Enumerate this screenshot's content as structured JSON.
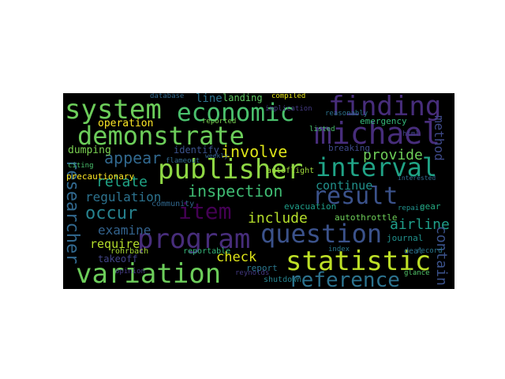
{
  "wordcloud": {
    "words": [
      {
        "text": "system",
        "color": "#6ccd5a"
      },
      {
        "text": "economic",
        "color": "#4ac16d"
      },
      {
        "text": "finding",
        "color": "#472d7b"
      },
      {
        "text": "demonstrate",
        "color": "#6ccd5a"
      },
      {
        "text": "michael",
        "color": "#472d7b"
      },
      {
        "text": "publisher",
        "color": "#8fd744"
      },
      {
        "text": "interval",
        "color": "#20a386"
      },
      {
        "text": "result",
        "color": "#3b528b"
      },
      {
        "text": "involve",
        "color": "#dde318"
      },
      {
        "text": "appear",
        "color": "#31688e"
      },
      {
        "text": "item",
        "color": "#440154"
      },
      {
        "text": "program",
        "color": "#472d7b"
      },
      {
        "text": "question",
        "color": "#3b528b"
      },
      {
        "text": "statistic",
        "color": "#bddf26"
      },
      {
        "text": "variation",
        "color": "#6ccd5a"
      },
      {
        "text": "reference",
        "color": "#2c728e"
      },
      {
        "text": "researcher",
        "color": "#31688e"
      },
      {
        "text": "inspection",
        "color": "#3fbc73"
      },
      {
        "text": "include",
        "color": "#b5de2b"
      },
      {
        "text": "occur",
        "color": "#26828e"
      },
      {
        "text": "relate",
        "color": "#20a486"
      },
      {
        "text": "regulation",
        "color": "#2c728e"
      },
      {
        "text": "provide",
        "color": "#6ece58"
      },
      {
        "text": "continue",
        "color": "#21918c"
      },
      {
        "text": "airline",
        "color": "#1f9e89"
      },
      {
        "text": "method",
        "color": "#3e4989"
      },
      {
        "text": "contain",
        "color": "#3b528b"
      },
      {
        "text": "examine",
        "color": "#33638d"
      },
      {
        "text": "require",
        "color": "#b5de2b"
      },
      {
        "text": "check",
        "color": "#dde318"
      },
      {
        "text": "operation",
        "color": "#fde725"
      },
      {
        "text": "line",
        "color": "#2c728e"
      },
      {
        "text": "landing",
        "color": "#5ec962"
      },
      {
        "text": "identify",
        "color": "#3b528b"
      },
      {
        "text": "dumping",
        "color": "#7ad151"
      },
      {
        "text": "emergency",
        "color": "#35b779"
      },
      {
        "text": "breaking",
        "color": "#3e4989"
      },
      {
        "text": "takeoff",
        "color": "#414487"
      },
      {
        "text": "precautionary",
        "color": "#fde725"
      },
      {
        "text": "autothrottle",
        "color": "#6ece58"
      },
      {
        "text": "evacuation",
        "color": "#1f9e89"
      },
      {
        "text": "report",
        "color": "#2a788e"
      },
      {
        "text": "shutdown",
        "color": "#26828e"
      },
      {
        "text": "journal",
        "color": "#21918c"
      },
      {
        "text": "gear",
        "color": "#25ab82"
      },
      {
        "text": "deal",
        "color": "#2c728e"
      },
      {
        "text": "reportable",
        "color": "#35b779"
      },
      {
        "text": "rohrbach",
        "color": "#a8db34"
      },
      {
        "text": "community",
        "color": "#31688e"
      },
      {
        "text": "autoflight",
        "color": "#9fda3a"
      },
      {
        "text": "flameout",
        "color": "#31688e"
      },
      {
        "text": "citing",
        "color": "#4ac16d"
      },
      {
        "text": "reynolds",
        "color": "#443a83"
      },
      {
        "text": "index",
        "color": "#2a788e"
      },
      {
        "text": "glance",
        "color": "#52c569"
      },
      {
        "text": "compiled",
        "color": "#e5e419"
      },
      {
        "text": "implication",
        "color": "#443a83"
      },
      {
        "text": "reasonably",
        "color": "#2c728e"
      },
      {
        "text": "database",
        "color": "#31688e"
      },
      {
        "text": "reported",
        "color": "#7ad151"
      },
      {
        "text": "listed",
        "color": "#4ac16d"
      },
      {
        "text": "weekly",
        "color": "#33638d"
      },
      {
        "text": "record",
        "color": "#2a788e"
      },
      {
        "text": "repair",
        "color": "#21918c"
      },
      {
        "text": "opinion",
        "color": "#443a83"
      },
      {
        "text": "html",
        "color": "#414487"
      },
      {
        "text": "interested",
        "color": "#31688e"
      }
    ]
  }
}
